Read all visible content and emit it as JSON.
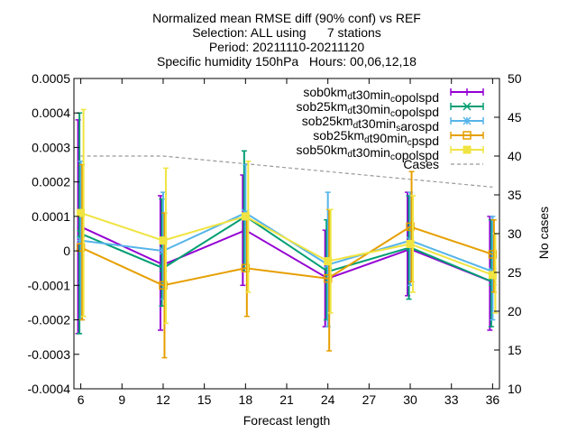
{
  "chart_data": {
    "type": "line",
    "title_lines": [
      "Normalized mean RMSE diff (90% conf) vs REF",
      "Selection: ALL using      7 stations",
      "Period: 20211110-20211120",
      "Specific humidity 150hPa   Hours: 00,06,12,18"
    ],
    "xlabel": "Forecast length",
    "ylabel": "",
    "y2label": "No cases",
    "xlim": [
      5.5,
      36.5
    ],
    "ylim": [
      -0.0004,
      0.0005
    ],
    "y2lim": [
      10,
      50
    ],
    "xticks": [
      6,
      9,
      12,
      15,
      18,
      21,
      24,
      27,
      30,
      33,
      36
    ],
    "yticks": [
      -0.0004,
      -0.0003,
      -0.0002,
      -0.0001,
      0,
      0.0001,
      0.0002,
      0.0003,
      0.0004,
      0.0005
    ],
    "ytick_labels": [
      "-0.0004",
      "-0.0003",
      "-0.0002",
      "-0.0001",
      "0",
      "0.0001",
      "0.0002",
      "0.0003",
      "0.0004",
      "0.0005"
    ],
    "y2ticks": [
      10,
      15,
      20,
      25,
      30,
      35,
      40,
      45,
      50
    ],
    "y2tick_labels": [
      "10",
      "15",
      "20",
      "25",
      "30",
      "35",
      "40",
      "45",
      "50"
    ],
    "legend_position": "top-right",
    "series": [
      {
        "name_parts": [
          [
            "sob0km",
            ""
          ],
          [
            "d",
            "sub"
          ],
          [
            "t30min",
            ""
          ],
          [
            "c",
            "sub"
          ],
          [
            "opolspd",
            ""
          ]
        ],
        "color": "#9400d3",
        "marker": "plus",
        "x": [
          6,
          12,
          18,
          24,
          30,
          36
        ],
        "y": [
          7e-05,
          -4e-05,
          6e-05,
          -8e-05,
          5e-06,
          -9e-05
        ],
        "err_low": [
          -0.00024,
          -0.00023,
          -0.0001,
          -0.00022,
          -0.00013,
          -0.00023
        ],
        "err_high": [
          0.00038,
          0.00016,
          0.00022,
          6e-05,
          0.00017,
          0.0001
        ]
      },
      {
        "name_parts": [
          [
            "sob25km",
            ""
          ],
          [
            "d",
            "sub"
          ],
          [
            "t30min",
            ""
          ],
          [
            "c",
            "sub"
          ],
          [
            "opolspd",
            ""
          ]
        ],
        "color": "#009e73",
        "marker": "cross",
        "x": [
          6,
          12,
          18,
          24,
          30,
          36
        ],
        "y": [
          5e-05,
          -5e-05,
          0.0001,
          -6e-05,
          1e-05,
          -9e-05
        ],
        "err_low": [
          -0.00024,
          -0.00016,
          -6e-05,
          -0.0002,
          -0.00014,
          -0.00022
        ],
        "err_high": [
          0.0004,
          0.00015,
          0.00029,
          9e-05,
          0.00016,
          9e-05
        ]
      },
      {
        "name_parts": [
          [
            "sob25km",
            ""
          ],
          [
            "d",
            "sub"
          ],
          [
            "t30min",
            ""
          ],
          [
            "s",
            "sub"
          ],
          [
            "arospd",
            ""
          ]
        ],
        "color": "#56b4e9",
        "marker": "star",
        "x": [
          6,
          12,
          18,
          24,
          30,
          36
        ],
        "y": [
          3e-05,
          0.0,
          0.00011,
          -4e-05,
          3e-05,
          -6e-05
        ],
        "err_low": [
          -0.0002,
          -0.00014,
          -4e-05,
          -0.00022,
          -0.0001,
          -0.0002
        ],
        "err_high": [
          0.00026,
          0.00017,
          0.00025,
          0.00017,
          0.00017,
          0.0001
        ]
      },
      {
        "name_parts": [
          [
            "sob25km",
            ""
          ],
          [
            "d",
            "sub"
          ],
          [
            "t90min",
            ""
          ],
          [
            "c",
            "sub"
          ],
          [
            "pspd",
            ""
          ]
        ],
        "color": "#e69f00",
        "marker": "square",
        "x": [
          6,
          12,
          18,
          24,
          30,
          36
        ],
        "y": [
          1e-05,
          -0.0001,
          -5e-05,
          -8e-05,
          7e-05,
          -1e-05
        ],
        "err_low": [
          -0.0002,
          -0.00031,
          -0.00019,
          -0.00029,
          -9e-05,
          -0.00012
        ],
        "err_high": [
          0.00025,
          0.00011,
          0.0001,
          0.00012,
          0.00023,
          9e-05
        ]
      },
      {
        "name_parts": [
          [
            "sob50km",
            ""
          ],
          [
            "d",
            "sub"
          ],
          [
            "t30min",
            ""
          ],
          [
            "c",
            "sub"
          ],
          [
            "opolspd",
            ""
          ]
        ],
        "color": "#f0e442",
        "marker": "filled-square",
        "x": [
          6,
          12,
          18,
          24,
          30,
          36
        ],
        "y": [
          0.00011,
          3e-05,
          0.0001,
          -3e-05,
          2e-05,
          -7e-05
        ],
        "err_low": [
          -0.00019,
          -0.00021,
          -0.00012,
          -0.00018,
          -0.00012,
          -0.00018
        ],
        "err_high": [
          0.00041,
          0.00024,
          0.00026,
          0.00012,
          0.00016,
          5e-05
        ]
      }
    ],
    "cases": {
      "name": "Cases",
      "color": "#999999",
      "dash": true,
      "x": [
        6,
        12,
        18,
        24,
        30,
        36
      ],
      "y2": [
        40,
        40,
        39,
        38,
        37,
        36
      ]
    }
  }
}
